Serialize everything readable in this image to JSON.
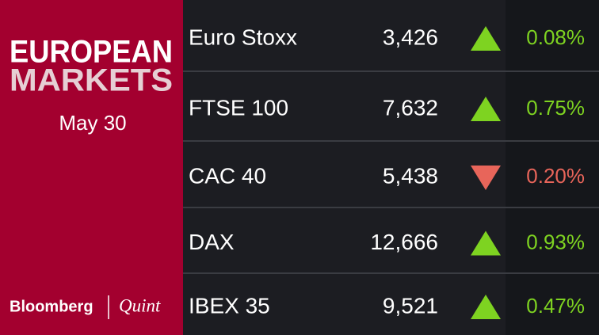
{
  "header": {
    "title": "EUROPEAN",
    "subtitle": "MARKETS",
    "date": "May 30"
  },
  "logo": {
    "brand": "Bloomberg",
    "partner": "Quint"
  },
  "colors": {
    "up": "#7ed321",
    "down": "#e8655a"
  },
  "table": {
    "rows": [
      {
        "name": "Euro Stoxx",
        "value": "3,426",
        "direction": "up",
        "change": "0.08%"
      },
      {
        "name": "FTSE 100",
        "value": "7,632",
        "direction": "up",
        "change": "0.75%"
      },
      {
        "name": "CAC 40",
        "value": "5,438",
        "direction": "down",
        "change": "0.20%"
      },
      {
        "name": "DAX",
        "value": "12,666",
        "direction": "up",
        "change": "0.93%"
      },
      {
        "name": "IBEX 35",
        "value": "9,521",
        "direction": "up",
        "change": "0.47%"
      }
    ]
  }
}
